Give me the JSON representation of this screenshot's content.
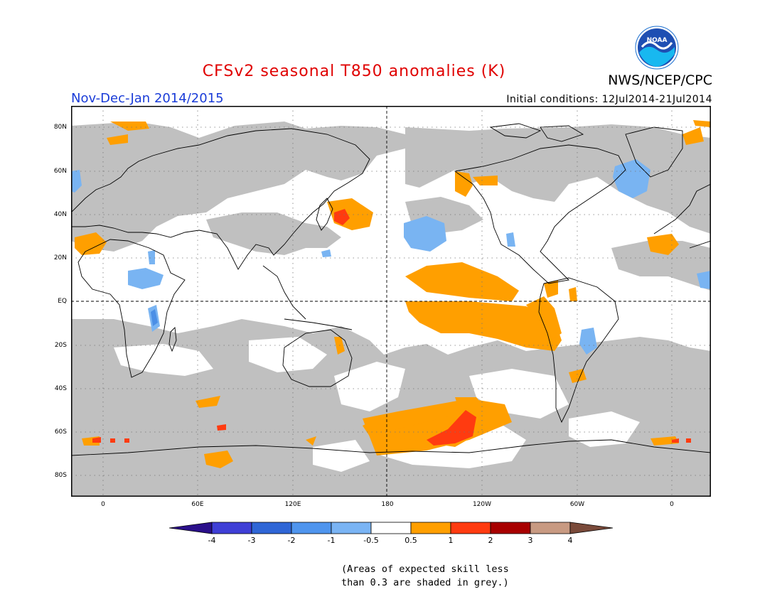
{
  "title": "CFSv2 seasonal T850 anomalies (K)",
  "organization": "NWS/NCEP/CPC",
  "logo_text": "NOAA",
  "period": "Nov-Dec-Jan 2014/2015",
  "initial_conditions": "Initial conditions: 12Jul2014-21Jul2014",
  "lat_labels": [
    "80N",
    "60N",
    "40N",
    "20N",
    "EQ",
    "20S",
    "40S",
    "60S",
    "80S"
  ],
  "lon_labels": [
    "0",
    "60E",
    "120E",
    "180",
    "120W",
    "60W",
    "0"
  ],
  "colorbar": {
    "labels": [
      "-4",
      "-3",
      "-2",
      "-1",
      "-0.5",
      "0.5",
      "1",
      "2",
      "3",
      "4"
    ],
    "colors": [
      "#2a0f8a",
      "#3f3fd6",
      "#2f66d6",
      "#4f95ee",
      "#7ab4f4",
      "#ffffff",
      "#ff9f00",
      "#ff3b10",
      "#a80000",
      "#c89a82",
      "#7a4a3a"
    ]
  },
  "note_line1": "(Areas of expected skill less",
  "note_line2": "than 0.3 are shaded in grey.)",
  "colors": {
    "grey_low_skill": "#c0c0c0",
    "orange": "#ff9f00",
    "red": "#ff3b10",
    "lightblue": "#79b4f2",
    "midblue": "#4b8fe6"
  }
}
